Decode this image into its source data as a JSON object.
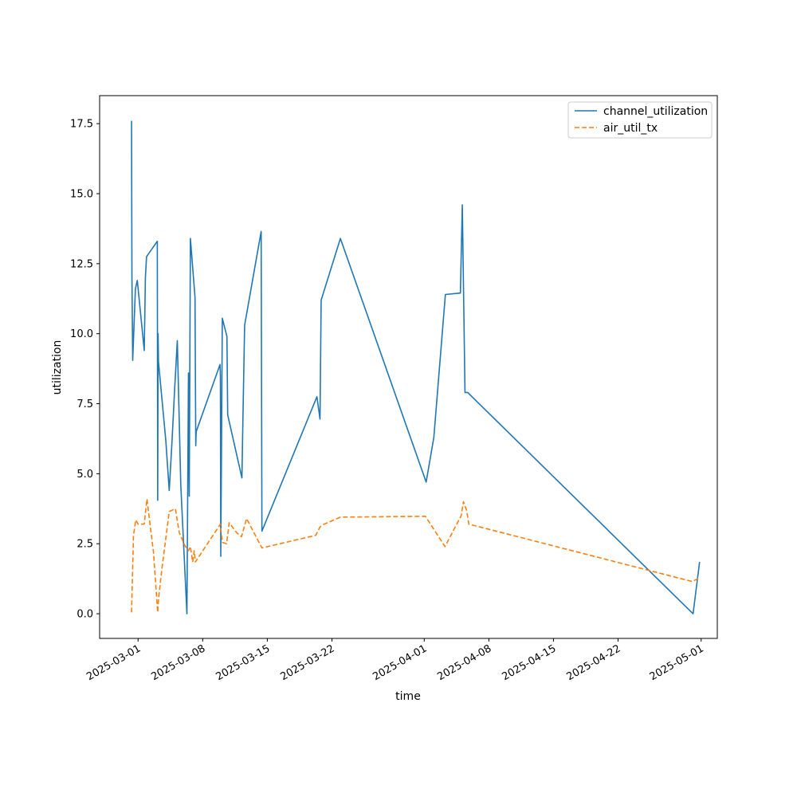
{
  "chart_data": {
    "type": "line",
    "xlabel": "time",
    "ylabel": "utilization",
    "xlim": [
      "2025-02-24T20:00",
      "2025-05-02T18:00"
    ],
    "ylim": [
      -0.88,
      18.5
    ],
    "grid": false,
    "legend_position": "top-right",
    "x_ticks": [
      "2025-03-01",
      "2025-03-08",
      "2025-03-15",
      "2025-03-22",
      "2025-04-01",
      "2025-04-08",
      "2025-04-15",
      "2025-04-22",
      "2025-05-01"
    ],
    "y_ticks": [
      "0.0",
      "2.5",
      "5.0",
      "7.5",
      "10.0",
      "12.5",
      "15.0",
      "17.5"
    ],
    "series": [
      {
        "name": "channel_utilization",
        "color": "#1f77b4",
        "dash": "solid",
        "points": [
          [
            "2025-02-28T07:00",
            17.6
          ],
          [
            "2025-02-28T08:00",
            12.0
          ],
          [
            "2025-02-28T10:00",
            9.05
          ],
          [
            "2025-02-28T17:00",
            11.6
          ],
          [
            "2025-02-28T22:00",
            11.9
          ],
          [
            "2025-03-01T16:00",
            9.4
          ],
          [
            "2025-03-01T19:00",
            12.0
          ],
          [
            "2025-03-01T22:00",
            12.75
          ],
          [
            "2025-03-03T02:00",
            13.3
          ],
          [
            "2025-03-03T03:00",
            4.05
          ],
          [
            "2025-03-03T04:00",
            10.0
          ],
          [
            "2025-03-03T05:00",
            9.0
          ],
          [
            "2025-03-04T00:00",
            6.2
          ],
          [
            "2025-03-04T09:00",
            4.4
          ],
          [
            "2025-03-04T16:00",
            6.1
          ],
          [
            "2025-03-04T23:00",
            8.0
          ],
          [
            "2025-03-05T06:00",
            9.75
          ],
          [
            "2025-03-05T15:00",
            4.6
          ],
          [
            "2025-03-06T07:00",
            0.0
          ],
          [
            "2025-03-06T11:00",
            8.6
          ],
          [
            "2025-03-06T13:00",
            4.2
          ],
          [
            "2025-03-06T16:00",
            13.4
          ],
          [
            "2025-03-07T04:00",
            11.3
          ],
          [
            "2025-03-07T06:00",
            6.0
          ],
          [
            "2025-03-07T07:00",
            6.5
          ],
          [
            "2025-03-09T21:00",
            8.9
          ],
          [
            "2025-03-09T22:00",
            8.5
          ],
          [
            "2025-03-09T23:00",
            2.05
          ],
          [
            "2025-03-10T03:00",
            10.55
          ],
          [
            "2025-03-10T15:00",
            9.9
          ],
          [
            "2025-03-10T17:00",
            7.1
          ],
          [
            "2025-03-12T06:00",
            4.85
          ],
          [
            "2025-03-12T08:00",
            6.5
          ],
          [
            "2025-03-12T13:00",
            10.3
          ],
          [
            "2025-03-14T08:00",
            13.65
          ],
          [
            "2025-03-14T10:00",
            2.95
          ],
          [
            "2025-03-20T09:00",
            7.75
          ],
          [
            "2025-03-20T17:00",
            6.95
          ],
          [
            "2025-03-20T20:00",
            11.2
          ],
          [
            "2025-03-22T22:00",
            13.4
          ],
          [
            "2025-04-01T05:00",
            4.7
          ],
          [
            "2025-04-02T01:00",
            6.3
          ],
          [
            "2025-04-03T07:00",
            11.4
          ],
          [
            "2025-04-04T22:00",
            11.45
          ],
          [
            "2025-04-05T03:00",
            14.6
          ],
          [
            "2025-04-05T10:00",
            7.9
          ],
          [
            "2025-04-05T17:00",
            7.9
          ],
          [
            "2025-04-30T03:00",
            0.0
          ],
          [
            "2025-04-30T20:00",
            1.85
          ]
        ]
      },
      {
        "name": "air_util_tx",
        "color": "#ff7f0e",
        "dash": "dashed",
        "points": [
          [
            "2025-02-28T07:00",
            0.05
          ],
          [
            "2025-02-28T12:00",
            2.8
          ],
          [
            "2025-02-28T18:00",
            3.35
          ],
          [
            "2025-03-01T00:00",
            3.2
          ],
          [
            "2025-03-01T16:00",
            3.2
          ],
          [
            "2025-03-01T23:00",
            4.1
          ],
          [
            "2025-03-02T16:00",
            2.2
          ],
          [
            "2025-03-03T03:00",
            0.05
          ],
          [
            "2025-03-03T05:00",
            0.5
          ],
          [
            "2025-03-03T13:00",
            1.5
          ],
          [
            "2025-03-04T09:00",
            3.65
          ],
          [
            "2025-03-05T01:00",
            3.75
          ],
          [
            "2025-03-05T11:00",
            2.9
          ],
          [
            "2025-03-06T01:00",
            2.45
          ],
          [
            "2025-03-06T11:00",
            2.25
          ],
          [
            "2025-03-06T16:00",
            2.4
          ],
          [
            "2025-03-06T22:00",
            1.85
          ],
          [
            "2025-03-07T02:00",
            2.25
          ],
          [
            "2025-03-07T05:00",
            1.85
          ],
          [
            "2025-03-09T22:00",
            3.2
          ],
          [
            "2025-03-10T03:00",
            2.55
          ],
          [
            "2025-03-10T14:00",
            2.5
          ],
          [
            "2025-03-10T21:00",
            3.25
          ],
          [
            "2025-03-11T16:00",
            2.9
          ],
          [
            "2025-03-12T05:00",
            2.75
          ],
          [
            "2025-03-12T18:00",
            3.4
          ],
          [
            "2025-03-14T10:00",
            2.35
          ],
          [
            "2025-03-20T06:00",
            2.8
          ],
          [
            "2025-03-20T17:00",
            3.1
          ],
          [
            "2025-03-21T04:00",
            3.2
          ],
          [
            "2025-03-22T22:00",
            3.45
          ],
          [
            "2025-04-01T03:00",
            3.48
          ],
          [
            "2025-04-03T06:00",
            2.4
          ],
          [
            "2025-04-05T00:00",
            3.5
          ],
          [
            "2025-04-05T06:00",
            4.0
          ],
          [
            "2025-04-05T14:00",
            3.7
          ],
          [
            "2025-04-05T20:00",
            3.2
          ],
          [
            "2025-04-30T01:00",
            1.15
          ],
          [
            "2025-04-30T22:00",
            1.3
          ]
        ]
      }
    ]
  }
}
